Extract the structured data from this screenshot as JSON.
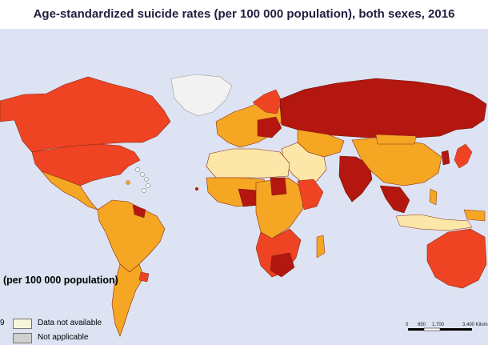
{
  "title": "Age-standardized suicide rates (per 100 000 population), both sexes, 2016",
  "legend": {
    "title": "(per 100 000 population)",
    "partial_value": "9",
    "items": [
      {
        "label": "Data not available",
        "color": "#f7f5dc"
      },
      {
        "label": "Not applicable",
        "color": "#d0d0d0"
      }
    ]
  },
  "scalebar": {
    "labels": [
      "0",
      "850",
      "1,700",
      "3,400 Kilom"
    ]
  },
  "colors": {
    "ocean": "#dde3f3",
    "very_high": "#b3170f",
    "high": "#ee4423",
    "medium": "#f5a623",
    "low": "#fce6a8",
    "no_data": "#f2f2f2"
  }
}
